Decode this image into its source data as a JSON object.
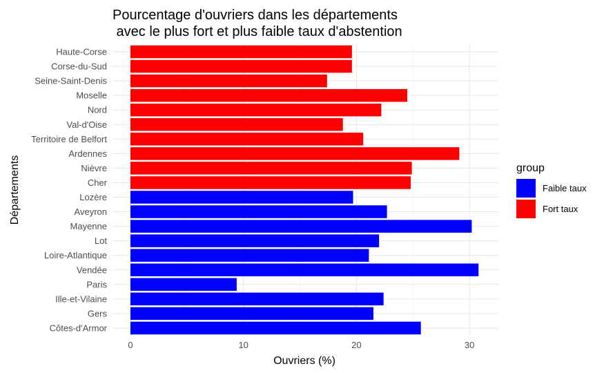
{
  "chart_data": {
    "type": "bar",
    "orientation": "horizontal",
    "title_line1": "Pourcentage d'ouvriers dans les départements",
    "title_line2": " avec le plus fort et plus faible taux d'abstention",
    "xlabel": "Ouvriers (%)",
    "ylabel": "Départements",
    "xlim": [
      0,
      32.5
    ],
    "xticks": [
      0,
      10,
      20,
      30
    ],
    "grid": true,
    "legend": {
      "title": "group",
      "position": "right",
      "entries": [
        {
          "label": "Faible taux",
          "color": "#0000FF"
        },
        {
          "label": "Fort taux",
          "color": "#FF0000"
        }
      ]
    },
    "categories": [
      "Haute-Corse",
      "Corse-du-Sud",
      "Seine-Saint-Denis",
      "Moselle",
      "Nord",
      "Val-d'Oise",
      "Territoire de Belfort",
      "Ardennes",
      "Nièvre",
      "Cher",
      "Lozère",
      "Aveyron",
      "Mayenne",
      "Lot",
      "Loire-Atlantique",
      "Vendée",
      "Paris",
      "Ille-et-Vilaine",
      "Gers",
      "Côtes-d'Armor"
    ],
    "values": [
      19.6,
      19.6,
      17.4,
      24.5,
      22.2,
      18.8,
      20.6,
      29.1,
      24.9,
      24.8,
      19.7,
      22.7,
      30.2,
      22.0,
      21.1,
      30.8,
      9.4,
      22.4,
      21.5,
      25.7
    ],
    "groups": [
      "Fort taux",
      "Fort taux",
      "Fort taux",
      "Fort taux",
      "Fort taux",
      "Fort taux",
      "Fort taux",
      "Fort taux",
      "Fort taux",
      "Fort taux",
      "Faible taux",
      "Faible taux",
      "Faible taux",
      "Faible taux",
      "Faible taux",
      "Faible taux",
      "Faible taux",
      "Faible taux",
      "Faible taux",
      "Faible taux"
    ]
  }
}
